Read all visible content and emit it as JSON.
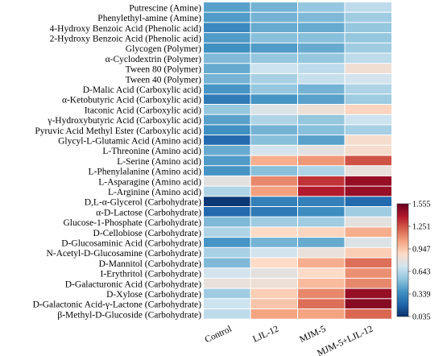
{
  "chart_data": {
    "type": "heatmap",
    "title": "",
    "xlabel": "",
    "ylabel": "",
    "columns": [
      "Control",
      "LJL-12",
      "MJM-5",
      "MJM-5+LJL-12"
    ],
    "rows": [
      "Putrescine (Amine)",
      "Phenylethyl-amine (Amine)",
      "4-Hydroxy Benzoic Acid (Phenolic acid)",
      "2-Hydroxy Benzoic Acid (Phenolic acid)",
      "Glycogen (Polymer)",
      "α-Cyclodextrin (Polymer)",
      "Tween 80 (Polymer)",
      "Tween 40 (Polymer)",
      "D-Malic Acid (Carboxylic acid)",
      "α-Ketobutyric Acid (Carboxylic acid)",
      "Itaconic Acid (Carboxylic acid)",
      "γ-Hydroxybutyric Acid (Carboxylic acid)",
      "Pyruvic Acid Methyl Ester (Carboxylic acid)",
      "Glycyl-L-Glutamic Acid (Amino acid)",
      "L-Threonine (Amino acid)",
      "L-Serine (Amino acid)",
      "L-Phenylalanine (Amino acid)",
      "L-Asparagine (Amino acid)",
      "L-Arginine (Amino acid)",
      "D,L-α-Glycerol (Carbohydrate)",
      "α-D-Lactose (Carbohydrate)",
      "Glucose-1-Phosphate (Carbohydrate)",
      "D-Cellobiose (Carbohydrate)",
      "D-Glucosaminic Acid (Carbohydrate)",
      "N-Acetyl-D-Glucosamine (Carbohydrate)",
      "D-Mannitol (Carbohydrate)",
      "I-Erythritol (Carbohydrate)",
      "D-Galacturonic Acid (Carbohydrate)",
      "D-Xylose (Carbohydrate)",
      "D-Galactonic Acid-γ-Lactone (Carbohydrate)",
      "β-Methyl-D-Glucoside (Carbohydrate)"
    ],
    "values": [
      [
        0.42,
        0.48,
        0.55,
        0.66
      ],
      [
        0.4,
        0.48,
        0.5,
        0.58
      ],
      [
        0.33,
        0.45,
        0.45,
        0.55
      ],
      [
        0.4,
        0.52,
        0.52,
        0.55
      ],
      [
        0.36,
        0.4,
        0.45,
        0.58
      ],
      [
        0.5,
        0.55,
        0.55,
        0.66
      ],
      [
        0.45,
        0.7,
        0.66,
        0.83
      ],
      [
        0.48,
        0.6,
        0.68,
        0.72
      ],
      [
        0.38,
        0.55,
        0.48,
        0.62
      ],
      [
        0.28,
        0.38,
        0.42,
        0.58
      ],
      [
        0.55,
        0.75,
        0.82,
        0.9
      ],
      [
        0.42,
        0.62,
        0.55,
        0.7
      ],
      [
        0.36,
        0.48,
        0.52,
        0.6
      ],
      [
        0.22,
        0.52,
        0.42,
        0.85
      ],
      [
        0.45,
        0.72,
        0.78,
        0.85
      ],
      [
        0.4,
        1.02,
        1.08,
        1.25
      ],
      [
        0.38,
        0.52,
        0.62,
        0.8
      ],
      [
        0.78,
        1.12,
        1.32,
        1.45
      ],
      [
        0.62,
        1.06,
        1.38,
        1.45
      ],
      [
        0.06,
        0.3,
        0.3,
        0.22
      ],
      [
        0.22,
        0.28,
        0.35,
        0.58
      ],
      [
        0.5,
        0.58,
        0.58,
        0.78
      ],
      [
        0.62,
        0.88,
        0.9,
        1.02
      ],
      [
        0.38,
        0.48,
        0.45,
        0.75
      ],
      [
        0.6,
        0.72,
        0.8,
        0.92
      ],
      [
        0.5,
        0.88,
        1.02,
        1.18
      ],
      [
        0.72,
        0.78,
        0.88,
        1.1
      ],
      [
        0.8,
        0.82,
        0.98,
        1.12
      ],
      [
        0.58,
        0.92,
        1.12,
        1.45
      ],
      [
        0.7,
        0.95,
        1.18,
        1.48
      ],
      [
        0.66,
        1.05,
        1.05,
        1.2
      ]
    ],
    "colorbar": {
      "min": 0.035,
      "max": 1.555,
      "ticks": [
        "0.035",
        "0.339",
        "0.643",
        "0.947",
        "1.251",
        "1.555"
      ],
      "colors": [
        "#08306b",
        "#2166ac",
        "#4393c3",
        "#92c5de",
        "#d1e5f0",
        "#fddbc7",
        "#f4a582",
        "#d6604d",
        "#b2182b",
        "#67001f"
      ]
    },
    "grid": false,
    "legend_position": "right"
  }
}
